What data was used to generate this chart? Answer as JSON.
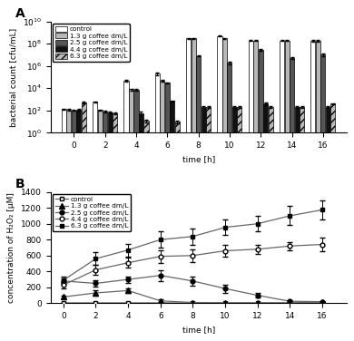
{
  "panel_A": {
    "time_points": [
      0,
      2,
      4,
      6,
      8,
      10,
      12,
      14,
      16
    ],
    "series": {
      "control": [
        130,
        600,
        50000,
        200000,
        300000000.0,
        500000000.0,
        200000000.0,
        200000000.0,
        200000000.0
      ],
      "1.3g": [
        120,
        110,
        8000,
        50000,
        300000000.0,
        300000000.0,
        200000000.0,
        200000000.0,
        200000000.0
      ],
      "2.5g": [
        100,
        80,
        7000,
        30000,
        8000000.0,
        2000000.0,
        30000000.0,
        5000000.0,
        10000000.0
      ],
      "4.4g": [
        120,
        70,
        60,
        700,
        200,
        200,
        400,
        200,
        200
      ],
      "6.3g": [
        500,
        55,
        12,
        10,
        200,
        200,
        200,
        200,
        400
      ]
    },
    "errors": {
      "control": [
        20,
        80,
        8000,
        40000,
        40000000.0,
        60000000.0,
        30000000.0,
        30000000.0,
        40000000.0
      ],
      "1.3g": [
        15,
        15,
        1500,
        10000,
        40000000.0,
        50000000.0,
        30000000.0,
        30000000.0,
        40000000.0
      ],
      "2.5g": [
        10,
        10,
        1000,
        5000,
        1000000.0,
        500000.0,
        5000000.0,
        1000000.0,
        2000000.0
      ],
      "4.4g": [
        20,
        10,
        15,
        120,
        30,
        30,
        80,
        30,
        30
      ],
      "6.3g": [
        80,
        10,
        3,
        3,
        30,
        30,
        30,
        30,
        60
      ]
    },
    "bar_colors": [
      "#ffffff",
      "#b8b8b8",
      "#555555",
      "#111111",
      "#b8b8b8"
    ],
    "hatches": [
      "",
      "",
      "",
      "",
      "////"
    ],
    "ylabel": "bacterial count [cfu/mL]",
    "xlabel": "time [h]",
    "legend_labels": [
      "control",
      "1.3 g coffee dm/L",
      "2.5 g coffee dm/L",
      "4.4 g coffee dm/L",
      "6.3 g coffee dm/L"
    ]
  },
  "panel_B": {
    "time_points": [
      0,
      2,
      4,
      6,
      8,
      10,
      12,
      14,
      16
    ],
    "series": {
      "control": [
        5,
        5,
        5,
        5,
        5,
        5,
        5,
        5,
        10
      ],
      "1.3g": [
        80,
        130,
        160,
        30,
        10,
        5,
        5,
        5,
        15
      ],
      "2.5g": [
        280,
        250,
        300,
        350,
        280,
        185,
        100,
        25,
        20
      ],
      "4.4g": [
        230,
        420,
        510,
        590,
        600,
        660,
        680,
        720,
        740
      ],
      "6.3g": [
        290,
        560,
        670,
        800,
        840,
        955,
        1000,
        1100,
        1175
      ]
    },
    "errors": {
      "control": [
        5,
        5,
        5,
        5,
        5,
        5,
        5,
        5,
        5
      ],
      "1.3g": [
        20,
        30,
        30,
        15,
        10,
        5,
        5,
        5,
        5
      ],
      "2.5g": [
        30,
        40,
        40,
        70,
        60,
        50,
        30,
        10,
        10
      ],
      "4.4g": [
        40,
        60,
        60,
        80,
        80,
        70,
        60,
        50,
        80
      ],
      "6.3g": [
        50,
        80,
        80,
        100,
        100,
        100,
        100,
        120,
        120
      ]
    },
    "ylabel": "concentration of H₂O₂ [μM]",
    "xlabel": "time [h]",
    "ylim": [
      0,
      1400
    ],
    "yticks": [
      0,
      200,
      400,
      600,
      800,
      1000,
      1200,
      1400
    ],
    "legend_labels": [
      "control",
      "1.3 g coffee dm/L",
      "2.5 g coffee dm/L",
      "4.4 g coffee dm/L",
      "6.3 g coffee dm/L"
    ]
  }
}
